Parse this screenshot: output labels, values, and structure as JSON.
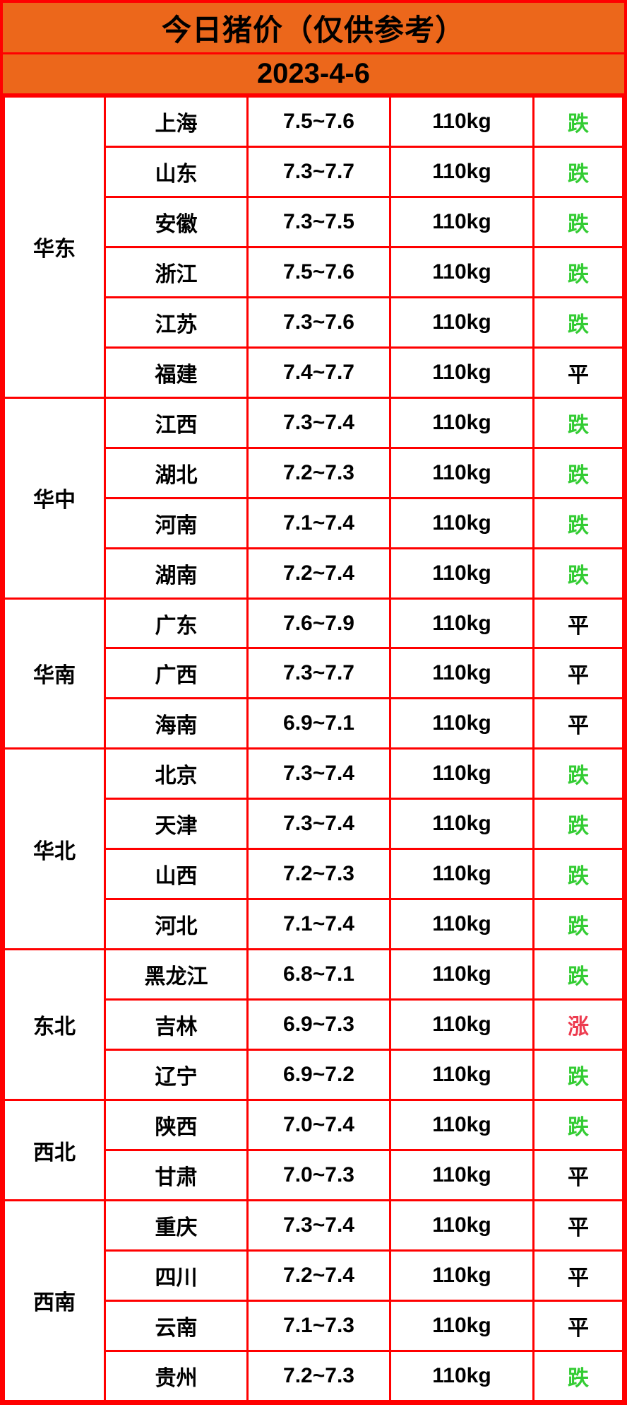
{
  "header": {
    "title": "今日猪价（仅供参考）",
    "date": "2023-4-6"
  },
  "colors": {
    "header_bg": "#EC671B",
    "border_red": "#FF0000",
    "trend_down_green": "#33CC33",
    "trend_up_red": "#ED3B4F",
    "text_black": "#000000"
  },
  "table": {
    "regions": [
      {
        "name": "华东",
        "rows": [
          {
            "province": "上海",
            "price": "7.5~7.6",
            "weight": "110kg",
            "trend": "跌",
            "direction": "down"
          },
          {
            "province": "山东",
            "price": "7.3~7.7",
            "weight": "110kg",
            "trend": "跌",
            "direction": "down"
          },
          {
            "province": "安徽",
            "price": "7.3~7.5",
            "weight": "110kg",
            "trend": "跌",
            "direction": "down"
          },
          {
            "province": "浙江",
            "price": "7.5~7.6",
            "weight": "110kg",
            "trend": "跌",
            "direction": "down"
          },
          {
            "province": "江苏",
            "price": "7.3~7.6",
            "weight": "110kg",
            "trend": "跌",
            "direction": "down"
          },
          {
            "province": "福建",
            "price": "7.4~7.7",
            "weight": "110kg",
            "trend": "平",
            "direction": "flat"
          }
        ]
      },
      {
        "name": "华中",
        "rows": [
          {
            "province": "江西",
            "price": "7.3~7.4",
            "weight": "110kg",
            "trend": "跌",
            "direction": "down"
          },
          {
            "province": "湖北",
            "price": "7.2~7.3",
            "weight": "110kg",
            "trend": "跌",
            "direction": "down"
          },
          {
            "province": "河南",
            "price": "7.1~7.4",
            "weight": "110kg",
            "trend": "跌",
            "direction": "down"
          },
          {
            "province": "湖南",
            "price": "7.2~7.4",
            "weight": "110kg",
            "trend": "跌",
            "direction": "down"
          }
        ]
      },
      {
        "name": "华南",
        "rows": [
          {
            "province": "广东",
            "price": "7.6~7.9",
            "weight": "110kg",
            "trend": "平",
            "direction": "flat"
          },
          {
            "province": "广西",
            "price": "7.3~7.7",
            "weight": "110kg",
            "trend": "平",
            "direction": "flat"
          },
          {
            "province": "海南",
            "price": "6.9~7.1",
            "weight": "110kg",
            "trend": "平",
            "direction": "flat"
          }
        ]
      },
      {
        "name": "华北",
        "rows": [
          {
            "province": "北京",
            "price": "7.3~7.4",
            "weight": "110kg",
            "trend": "跌",
            "direction": "down"
          },
          {
            "province": "天津",
            "price": "7.3~7.4",
            "weight": "110kg",
            "trend": "跌",
            "direction": "down"
          },
          {
            "province": "山西",
            "price": "7.2~7.3",
            "weight": "110kg",
            "trend": "跌",
            "direction": "down"
          },
          {
            "province": "河北",
            "price": "7.1~7.4",
            "weight": "110kg",
            "trend": "跌",
            "direction": "down"
          }
        ]
      },
      {
        "name": "东北",
        "rows": [
          {
            "province": "黑龙江",
            "price": "6.8~7.1",
            "weight": "110kg",
            "trend": "跌",
            "direction": "down"
          },
          {
            "province": "吉林",
            "price": "6.9~7.3",
            "weight": "110kg",
            "trend": "涨",
            "direction": "up"
          },
          {
            "province": "辽宁",
            "price": "6.9~7.2",
            "weight": "110kg",
            "trend": "跌",
            "direction": "down"
          }
        ]
      },
      {
        "name": "西北",
        "rows": [
          {
            "province": "陕西",
            "price": "7.0~7.4",
            "weight": "110kg",
            "trend": "跌",
            "direction": "down"
          },
          {
            "province": "甘肃",
            "price": "7.0~7.3",
            "weight": "110kg",
            "trend": "平",
            "direction": "flat"
          }
        ]
      },
      {
        "name": "西南",
        "rows": [
          {
            "province": "重庆",
            "price": "7.3~7.4",
            "weight": "110kg",
            "trend": "平",
            "direction": "flat"
          },
          {
            "province": "四川",
            "price": "7.2~7.4",
            "weight": "110kg",
            "trend": "平",
            "direction": "flat"
          },
          {
            "province": "云南",
            "price": "7.1~7.3",
            "weight": "110kg",
            "trend": "平",
            "direction": "flat"
          },
          {
            "province": "贵州",
            "price": "7.2~7.3",
            "weight": "110kg",
            "trend": "跌",
            "direction": "down"
          }
        ]
      }
    ]
  },
  "chart_data": {
    "type": "table",
    "title": "今日猪价（仅供参考）",
    "subtitle": "2023-4-6",
    "columns": [
      "region",
      "province",
      "price_range",
      "weight",
      "trend"
    ],
    "rows": [
      [
        "华东",
        "上海",
        "7.5~7.6",
        "110kg",
        "跌"
      ],
      [
        "华东",
        "山东",
        "7.3~7.7",
        "110kg",
        "跌"
      ],
      [
        "华东",
        "安徽",
        "7.3~7.5",
        "110kg",
        "跌"
      ],
      [
        "华东",
        "浙江",
        "7.5~7.6",
        "110kg",
        "跌"
      ],
      [
        "华东",
        "江苏",
        "7.3~7.6",
        "110kg",
        "跌"
      ],
      [
        "华东",
        "福建",
        "7.4~7.7",
        "110kg",
        "平"
      ],
      [
        "华中",
        "江西",
        "7.3~7.4",
        "110kg",
        "跌"
      ],
      [
        "华中",
        "湖北",
        "7.2~7.3",
        "110kg",
        "跌"
      ],
      [
        "华中",
        "河南",
        "7.1~7.4",
        "110kg",
        "跌"
      ],
      [
        "华中",
        "湖南",
        "7.2~7.4",
        "110kg",
        "跌"
      ],
      [
        "华南",
        "广东",
        "7.6~7.9",
        "110kg",
        "平"
      ],
      [
        "华南",
        "广西",
        "7.3~7.7",
        "110kg",
        "平"
      ],
      [
        "华南",
        "海南",
        "6.9~7.1",
        "110kg",
        "平"
      ],
      [
        "华北",
        "北京",
        "7.3~7.4",
        "110kg",
        "跌"
      ],
      [
        "华北",
        "天津",
        "7.3~7.4",
        "110kg",
        "跌"
      ],
      [
        "华北",
        "山西",
        "7.2~7.3",
        "110kg",
        "跌"
      ],
      [
        "华北",
        "河北",
        "7.1~7.4",
        "110kg",
        "跌"
      ],
      [
        "东北",
        "黑龙江",
        "6.8~7.1",
        "110kg",
        "跌"
      ],
      [
        "东北",
        "吉林",
        "6.9~7.3",
        "110kg",
        "涨"
      ],
      [
        "东北",
        "辽宁",
        "6.9~7.2",
        "110kg",
        "跌"
      ],
      [
        "西北",
        "陕西",
        "7.0~7.4",
        "110kg",
        "跌"
      ],
      [
        "西北",
        "甘肃",
        "7.0~7.3",
        "110kg",
        "平"
      ],
      [
        "西南",
        "重庆",
        "7.3~7.4",
        "110kg",
        "平"
      ],
      [
        "西南",
        "四川",
        "7.2~7.4",
        "110kg",
        "平"
      ],
      [
        "西南",
        "云南",
        "7.1~7.3",
        "110kg",
        "平"
      ],
      [
        "西南",
        "贵州",
        "7.2~7.3",
        "110kg",
        "跌"
      ]
    ]
  }
}
